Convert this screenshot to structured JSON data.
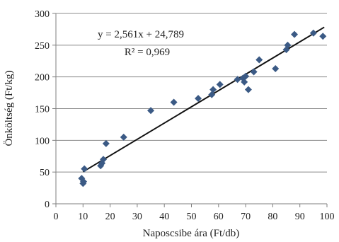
{
  "chart_data": {
    "type": "scatter",
    "title": "",
    "xlabel": "Naposcsibe ára (Ft/db)",
    "ylabel": "Önköltség (Ft/kg)",
    "xlim": [
      0,
      100
    ],
    "ylim": [
      0,
      300
    ],
    "x_ticks": [
      "0",
      "10",
      "20",
      "30",
      "40",
      "50",
      "60",
      "70",
      "80",
      "90",
      "100"
    ],
    "y_ticks": [
      "0",
      "50",
      "100",
      "150",
      "200",
      "250",
      "300"
    ],
    "grid": "horizontal",
    "legend": "none",
    "marker": "diamond",
    "marker_color": "#3b5a85",
    "series": [
      {
        "x": [
          9.5,
          10,
          10.2,
          10.5,
          16.5,
          17,
          17.5,
          18.5,
          25,
          35,
          43.5,
          52.5,
          57.5,
          58,
          60.5,
          67,
          69,
          69.5,
          70,
          71,
          73,
          75,
          81,
          85,
          85.5,
          88,
          95,
          98.5
        ],
        "y": [
          40,
          32,
          35,
          55,
          60,
          64,
          70,
          95,
          105,
          147,
          160,
          166,
          172,
          180,
          188,
          196,
          198,
          192,
          201,
          180,
          208,
          227,
          213,
          243,
          250,
          267,
          269,
          264
        ]
      }
    ],
    "trendline": {
      "slope": 2.561,
      "intercept": 24.789,
      "x_range": [
        10,
        99
      ],
      "equation_label": "y = 2,561x + 24,789",
      "r2_label": "R² = 0,969",
      "color": "#111111"
    }
  }
}
